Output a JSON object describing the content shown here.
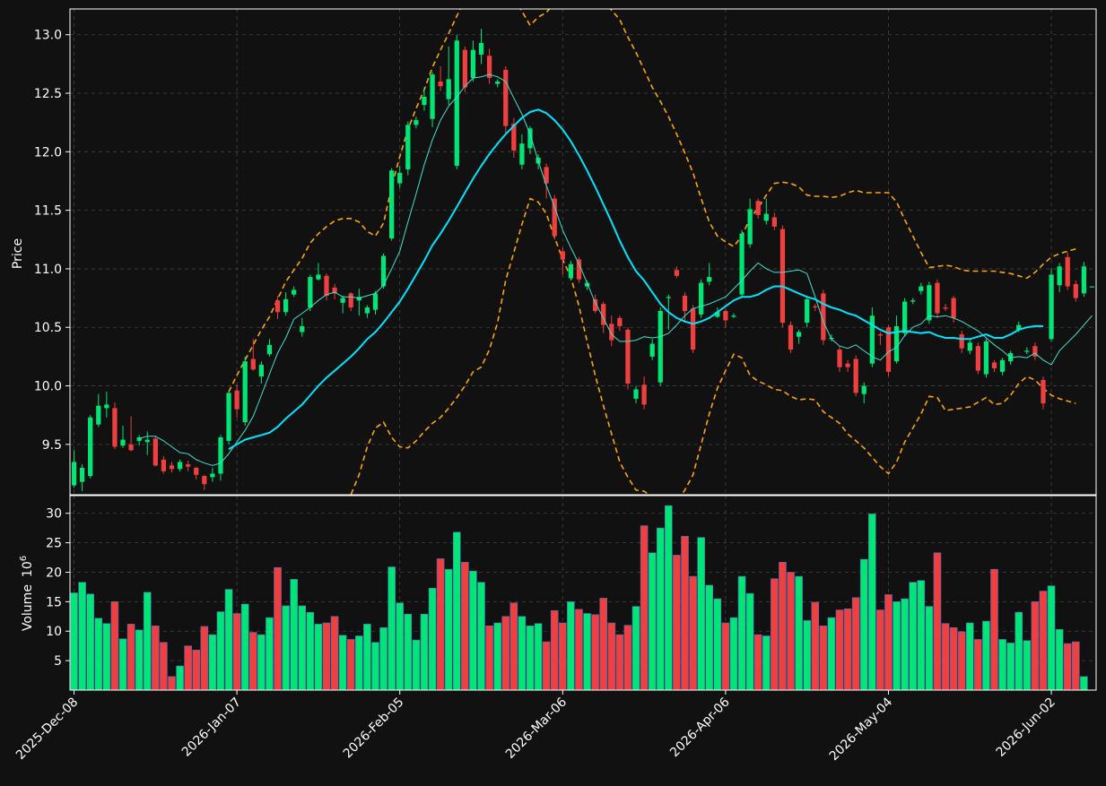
{
  "chart_data": {
    "type": "candlestick",
    "colors": {
      "background": "#111111",
      "up": "#00e676",
      "down": "#ef3f3f",
      "grid": "#444444",
      "ma_fast": "#40e0d0",
      "ma_slow": "#00e5ff",
      "bands": "#ffa500",
      "axes": "#ffffff",
      "volume_edge": "#4c6fbf"
    },
    "price_panel": {
      "ylabel": "Price",
      "ylim": [
        9.07,
        13.22
      ],
      "yticks": [
        9.5,
        10.0,
        10.5,
        11.0,
        11.5,
        12.0,
        12.5,
        13.0
      ],
      "ytick_labels": [
        "9.5",
        "10.0",
        "10.5",
        "11.0",
        "11.5",
        "12.0",
        "12.5",
        "13.0"
      ],
      "grid": true
    },
    "volume_panel": {
      "ylabel": "Volume",
      "yunit": "10",
      "yunit_exp": "6",
      "ylim": [
        0,
        33
      ],
      "yticks": [
        5,
        10,
        15,
        20,
        25,
        30
      ],
      "ytick_labels": [
        "5",
        "10",
        "15",
        "20",
        "25",
        "30"
      ],
      "grid": true
    },
    "x_axis": {
      "xlim": [
        -0.5,
        125.5
      ],
      "ticks": [
        0,
        20,
        40,
        60,
        80,
        100,
        120
      ],
      "labels": [
        "2025-Dec-08",
        "2026-Jan-07",
        "2026-Feb-05",
        "2026-Mar-06",
        "2026-Apr-06",
        "2026-May-04",
        "2026-Jun-02"
      ]
    },
    "candles": [
      [
        9.15,
        9.35,
        9.45,
        9.13
      ],
      [
        9.18,
        9.3,
        9.33,
        9.1
      ],
      [
        9.23,
        9.73,
        9.75,
        9.21
      ],
      [
        9.67,
        9.83,
        9.93,
        9.65
      ],
      [
        9.81,
        9.84,
        9.95,
        9.73
      ],
      [
        9.81,
        9.48,
        9.86,
        9.46
      ],
      [
        9.49,
        9.54,
        9.66,
        9.47
      ],
      [
        9.5,
        9.45,
        9.74,
        9.44
      ],
      [
        9.53,
        9.56,
        9.58,
        9.49
      ],
      [
        9.52,
        9.54,
        9.61,
        9.41
      ],
      [
        9.55,
        9.32,
        9.57,
        9.31
      ],
      [
        9.37,
        9.27,
        9.4,
        9.25
      ],
      [
        9.32,
        9.29,
        9.35,
        9.26
      ],
      [
        9.29,
        9.35,
        9.37,
        9.27
      ],
      [
        9.33,
        9.31,
        9.36,
        9.27
      ],
      [
        9.3,
        9.24,
        9.31,
        9.2
      ],
      [
        9.23,
        9.16,
        9.24,
        9.11
      ],
      [
        9.22,
        9.25,
        9.3,
        9.18
      ],
      [
        9.25,
        9.56,
        9.58,
        9.19
      ],
      [
        9.53,
        9.94,
        9.95,
        9.5
      ],
      [
        9.96,
        9.8,
        10.01,
        9.73
      ],
      [
        9.69,
        10.21,
        10.25,
        9.66
      ],
      [
        10.23,
        10.14,
        10.4,
        10.13
      ],
      [
        10.08,
        10.18,
        10.21,
        10.02
      ],
      [
        10.27,
        10.35,
        10.4,
        10.25
      ],
      [
        10.73,
        10.63,
        10.77,
        10.57
      ],
      [
        10.63,
        10.74,
        10.8,
        10.6
      ],
      [
        10.78,
        10.82,
        10.85,
        10.76
      ],
      [
        10.46,
        10.51,
        10.58,
        10.42
      ],
      [
        10.67,
        10.93,
        10.95,
        10.64
      ],
      [
        10.91,
        10.95,
        11.05,
        10.9
      ],
      [
        10.94,
        10.77,
        10.96,
        10.73
      ],
      [
        10.84,
        10.79,
        10.87,
        10.74
      ],
      [
        10.71,
        10.75,
        10.77,
        10.62
      ],
      [
        10.79,
        10.67,
        10.8,
        10.64
      ],
      [
        10.73,
        10.76,
        10.83,
        10.6
      ],
      [
        10.62,
        10.67,
        10.69,
        10.58
      ],
      [
        10.65,
        10.79,
        10.81,
        10.61
      ],
      [
        10.85,
        11.11,
        11.13,
        10.83
      ],
      [
        11.26,
        11.84,
        11.86,
        11.24
      ],
      [
        11.73,
        11.82,
        11.88,
        11.69
      ],
      [
        11.85,
        12.23,
        12.26,
        11.8
      ],
      [
        12.23,
        12.27,
        12.3,
        12.2
      ],
      [
        12.4,
        12.47,
        12.55,
        12.35
      ],
      [
        12.28,
        12.66,
        12.68,
        12.21
      ],
      [
        12.6,
        12.56,
        12.73,
        12.52
      ],
      [
        12.45,
        12.62,
        12.9,
        12.4
      ],
      [
        11.88,
        12.95,
        13.0,
        11.85
      ],
      [
        12.87,
        12.55,
        12.9,
        12.51
      ],
      [
        12.63,
        12.87,
        12.95,
        12.6
      ],
      [
        12.83,
        12.93,
        13.05,
        12.75
      ],
      [
        12.82,
        12.63,
        12.88,
        12.58
      ],
      [
        12.58,
        12.6,
        12.62,
        12.55
      ],
      [
        12.7,
        12.22,
        12.73,
        12.15
      ],
      [
        12.24,
        12.01,
        12.29,
        11.95
      ],
      [
        11.89,
        12.07,
        12.15,
        11.85
      ],
      [
        12.03,
        12.2,
        12.22,
        11.98
      ],
      [
        11.9,
        11.95,
        11.98,
        11.85
      ],
      [
        11.87,
        11.73,
        11.9,
        11.6
      ],
      [
        11.6,
        11.28,
        11.63,
        11.25
      ],
      [
        11.15,
        11.08,
        11.18,
        10.95
      ],
      [
        10.92,
        11.04,
        11.07,
        10.9
      ],
      [
        11.08,
        10.91,
        11.1,
        10.88
      ],
      [
        10.85,
        10.88,
        10.9,
        10.82
      ],
      [
        10.74,
        10.64,
        10.78,
        10.62
      ],
      [
        10.7,
        10.52,
        10.72,
        10.45
      ],
      [
        10.53,
        10.39,
        10.6,
        10.34
      ],
      [
        10.58,
        10.51,
        10.6,
        10.47
      ],
      [
        10.48,
        10.02,
        10.5,
        9.97
      ],
      [
        9.89,
        9.97,
        10.0,
        9.85
      ],
      [
        10.01,
        9.84,
        10.08,
        9.8
      ],
      [
        10.25,
        10.36,
        10.4,
        10.22
      ],
      [
        10.03,
        10.64,
        10.67,
        10.0
      ],
      [
        10.76,
        10.76,
        10.78,
        10.48
      ],
      [
        10.99,
        10.94,
        11.02,
        10.92
      ],
      [
        10.77,
        10.64,
        10.8,
        10.54
      ],
      [
        10.66,
        10.31,
        10.69,
        10.28
      ],
      [
        10.61,
        10.88,
        10.91,
        10.58
      ],
      [
        10.89,
        10.93,
        11.05,
        10.86
      ],
      [
        10.59,
        10.63,
        10.67,
        10.58
      ],
      [
        10.64,
        10.56,
        10.66,
        10.5
      ],
      [
        10.6,
        10.6,
        10.62,
        10.58
      ],
      [
        10.78,
        11.3,
        11.33,
        10.75
      ],
      [
        11.21,
        11.51,
        11.6,
        11.18
      ],
      [
        11.58,
        11.46,
        11.6,
        11.43
      ],
      [
        11.41,
        11.47,
        11.6,
        11.38
      ],
      [
        11.44,
        11.36,
        11.48,
        11.33
      ],
      [
        11.34,
        10.54,
        11.37,
        10.5
      ],
      [
        10.52,
        10.31,
        10.55,
        10.28
      ],
      [
        10.42,
        10.46,
        10.48,
        10.36
      ],
      [
        10.54,
        10.74,
        10.77,
        10.5
      ],
      [
        10.68,
        10.67,
        10.7,
        10.64
      ],
      [
        10.79,
        10.39,
        10.82,
        10.35
      ],
      [
        10.41,
        10.41,
        10.44,
        10.38
      ],
      [
        10.31,
        10.16,
        10.34,
        10.12
      ],
      [
        10.19,
        10.16,
        10.22,
        10.12
      ],
      [
        10.23,
        9.94,
        10.26,
        9.91
      ],
      [
        9.93,
        10.0,
        10.03,
        9.85
      ],
      [
        10.19,
        10.6,
        10.67,
        10.16
      ],
      [
        10.44,
        10.43,
        10.46,
        10.35
      ],
      [
        10.5,
        10.12,
        10.52,
        10.08
      ],
      [
        10.21,
        10.51,
        10.6,
        10.19
      ],
      [
        10.45,
        10.72,
        10.75,
        10.42
      ],
      [
        10.72,
        10.73,
        10.75,
        10.7
      ],
      [
        10.81,
        10.85,
        10.88,
        10.78
      ],
      [
        10.56,
        10.86,
        10.89,
        10.53
      ],
      [
        10.88,
        10.62,
        10.91,
        10.58
      ],
      [
        10.67,
        10.66,
        10.7,
        10.64
      ],
      [
        10.75,
        10.58,
        10.77,
        10.54
      ],
      [
        10.44,
        10.32,
        10.47,
        10.28
      ],
      [
        10.3,
        10.37,
        10.4,
        10.27
      ],
      [
        10.34,
        10.13,
        10.37,
        10.1
      ],
      [
        10.1,
        10.38,
        10.4,
        10.07
      ],
      [
        10.2,
        10.15,
        10.22,
        10.12
      ],
      [
        10.12,
        10.22,
        10.24,
        10.09
      ],
      [
        10.21,
        10.28,
        10.3,
        10.18
      ],
      [
        10.48,
        10.52,
        10.55,
        10.46
      ],
      [
        10.3,
        10.3,
        10.33,
        10.27
      ],
      [
        10.34,
        10.25,
        10.37,
        10.22
      ],
      [
        10.05,
        9.85,
        10.08,
        9.8
      ],
      [
        10.4,
        10.95,
        11.0,
        10.38
      ],
      [
        10.86,
        11.02,
        11.05,
        10.8
      ],
      [
        11.1,
        10.85,
        11.14,
        10.82
      ],
      [
        10.87,
        10.75,
        10.9,
        10.72
      ],
      [
        10.79,
        11.02,
        11.06,
        10.76
      ],
      [
        10.85,
        10.85,
        10.85,
        10.85
      ]
    ],
    "volume_millions": [
      16.5,
      18.3,
      16.3,
      12.2,
      11.3,
      15.0,
      8.7,
      11.2,
      10.2,
      16.6,
      10.9,
      8.1,
      2.3,
      4.1,
      7.5,
      6.8,
      10.8,
      9.4,
      13.3,
      17.1,
      13.0,
      14.6,
      9.8,
      9.4,
      12.3,
      20.8,
      14.3,
      18.8,
      14.3,
      13.2,
      11.2,
      11.4,
      12.5,
      9.3,
      8.6,
      9.2,
      11.2,
      8.1,
      10.6,
      20.9,
      14.8,
      12.9,
      8.5,
      12.9,
      17.3,
      22.3,
      20.5,
      26.8,
      21.7,
      20.2,
      18.3,
      10.9,
      11.4,
      12.5,
      14.8,
      12.5,
      10.9,
      11.3,
      8.2,
      13.5,
      11.4,
      15.0,
      13.7,
      13.0,
      12.8,
      15.6,
      11.4,
      9.4,
      11.0,
      14.2,
      27.9,
      23.3,
      27.5,
      31.3,
      22.9,
      26.1,
      19.3,
      25.9,
      17.8,
      15.5,
      11.4,
      12.3,
      19.3,
      16.4,
      9.4,
      9.2,
      18.9,
      21.7,
      20.0,
      19.3,
      11.8,
      14.9,
      10.9,
      12.3,
      13.6,
      13.8,
      15.7,
      22.2,
      29.9,
      13.6,
      16.2,
      15.0,
      15.5,
      18.3,
      18.6,
      14.2,
      23.3,
      11.3,
      10.6,
      9.9,
      11.4,
      8.6,
      11.7,
      20.5,
      8.6,
      8.0,
      13.2,
      8.4,
      15.0,
      16.8,
      17.7,
      10.3,
      7.9,
      8.2,
      2.3
    ],
    "ma_fast": [
      null,
      null,
      null,
      null,
      null,
      null,
      null,
      null,
      9.55,
      9.57,
      9.57,
      9.53,
      9.48,
      9.43,
      9.42,
      9.37,
      9.34,
      9.32,
      9.34,
      9.42,
      9.52,
      9.62,
      9.74,
      9.92,
      10.1,
      10.28,
      10.41,
      10.57,
      10.62,
      10.67,
      10.73,
      10.78,
      10.8,
      10.76,
      10.76,
      10.75,
      10.77,
      10.79,
      10.86,
      11.0,
      11.15,
      11.4,
      11.64,
      11.89,
      12.1,
      12.27,
      12.39,
      12.47,
      12.56,
      12.63,
      12.64,
      12.66,
      12.64,
      12.6,
      12.46,
      12.32,
      12.15,
      11.92,
      11.71,
      11.53,
      11.33,
      11.18,
      11.04,
      10.88,
      10.71,
      10.58,
      10.44,
      10.38,
      10.38,
      10.39,
      10.42,
      10.41,
      10.42,
      10.45,
      10.52,
      10.6,
      10.66,
      10.68,
      10.7,
      10.73,
      10.76,
      10.83,
      10.9,
      10.98,
      11.05,
      11.0,
      10.97,
      10.97,
      10.98,
      10.99,
      10.96,
      10.76,
      10.55,
      10.4,
      10.34,
      10.32,
      10.35,
      10.3,
      10.25,
      10.22,
      10.29,
      10.33,
      10.43,
      10.5,
      10.53,
      10.6,
      10.59,
      10.6,
      10.58,
      10.55,
      10.51,
      10.47,
      10.41,
      10.35,
      10.3,
      10.24,
      10.25,
      10.24,
      10.28,
      10.22,
      10.18,
      10.3,
      10.37,
      10.44,
      10.52,
      10.6
    ],
    "ma_slow": [
      null,
      null,
      null,
      null,
      null,
      null,
      null,
      null,
      null,
      null,
      null,
      null,
      null,
      null,
      null,
      null,
      null,
      null,
      null,
      9.46,
      9.5,
      9.54,
      9.56,
      9.58,
      9.6,
      9.65,
      9.72,
      9.78,
      9.84,
      9.92,
      10.0,
      10.07,
      10.13,
      10.19,
      10.25,
      10.32,
      10.4,
      10.46,
      10.54,
      10.63,
      10.72,
      10.83,
      10.95,
      11.07,
      11.2,
      11.3,
      11.41,
      11.53,
      11.65,
      11.77,
      11.88,
      11.98,
      12.07,
      12.15,
      12.22,
      12.29,
      12.34,
      12.36,
      12.33,
      12.27,
      12.19,
      12.09,
      11.97,
      11.84,
      11.7,
      11.55,
      11.4,
      11.24,
      11.1,
      10.98,
      10.9,
      10.8,
      10.7,
      10.63,
      10.58,
      10.55,
      10.53,
      10.55,
      10.58,
      10.63,
      10.68,
      10.73,
      10.76,
      10.76,
      10.78,
      10.82,
      10.85,
      10.85,
      10.82,
      10.79,
      10.76,
      10.74,
      10.7,
      10.67,
      10.65,
      10.62,
      10.6,
      10.56,
      10.52,
      10.48,
      10.45,
      10.46,
      10.47,
      10.46,
      10.45,
      10.46,
      10.43,
      10.41,
      10.41,
      10.4,
      10.4,
      10.42,
      10.44,
      10.41,
      10.41,
      10.44,
      10.48,
      10.5,
      10.51,
      10.51
    ],
    "band_upper": [
      null,
      null,
      null,
      null,
      null,
      null,
      null,
      null,
      null,
      null,
      null,
      null,
      null,
      null,
      null,
      null,
      null,
      null,
      null,
      9.95,
      10.09,
      10.22,
      10.35,
      10.48,
      10.59,
      10.74,
      10.89,
      10.99,
      11.09,
      11.22,
      11.3,
      11.36,
      11.41,
      11.43,
      11.43,
      11.4,
      11.32,
      11.28,
      11.39,
      11.7,
      11.96,
      12.19,
      12.37,
      12.53,
      12.72,
      12.87,
      13.01,
      13.16,
      13.3,
      13.42,
      13.6,
      13.65,
      13.6,
      13.4,
      13.3,
      13.2,
      13.08,
      13.15,
      13.19,
      13.27,
      13.3,
      13.25,
      13.26,
      13.3,
      13.31,
      13.27,
      13.21,
      13.13,
      12.98,
      12.85,
      12.7,
      12.55,
      12.43,
      12.3,
      12.15,
      11.99,
      11.82,
      11.6,
      11.4,
      11.28,
      11.23,
      11.19,
      11.28,
      11.43,
      11.52,
      11.63,
      11.73,
      11.74,
      11.73,
      11.7,
      11.63,
      11.62,
      11.62,
      11.61,
      11.62,
      11.65,
      11.67,
      11.65,
      11.65,
      11.65,
      11.65,
      11.57,
      11.42,
      11.28,
      11.14,
      11.01,
      11.02,
      11.03,
      11.02,
      10.99,
      10.98,
      10.98,
      10.98,
      10.98,
      10.97,
      10.96,
      10.94,
      10.92,
      10.97,
      11.04,
      11.1,
      11.13,
      11.15,
      11.17
    ],
    "band_lower": [
      null,
      null,
      null,
      null,
      null,
      null,
      null,
      null,
      null,
      null,
      null,
      null,
      null,
      null,
      null,
      null,
      null,
      null,
      null,
      8.97,
      8.91,
      8.86,
      8.77,
      8.68,
      8.61,
      8.56,
      8.55,
      8.57,
      8.59,
      8.62,
      8.7,
      8.78,
      8.85,
      8.95,
      9.07,
      9.24,
      9.48,
      9.64,
      9.69,
      9.56,
      9.48,
      9.47,
      9.53,
      9.61,
      9.68,
      9.73,
      9.81,
      9.9,
      10.0,
      10.12,
      10.16,
      10.31,
      10.54,
      10.9,
      11.14,
      11.38,
      11.6,
      11.57,
      11.47,
      11.27,
      11.08,
      10.93,
      10.68,
      10.38,
      10.09,
      9.83,
      9.59,
      9.35,
      9.22,
      9.11,
      9.1,
      9.05,
      8.97,
      8.96,
      9.01,
      9.11,
      9.24,
      9.5,
      9.76,
      9.98,
      10.13,
      10.27,
      10.24,
      10.09,
      10.04,
      10.01,
      9.97,
      9.96,
      9.91,
      9.88,
      9.89,
      9.88,
      9.78,
      9.73,
      9.68,
      9.59,
      9.53,
      9.47,
      9.39,
      9.31,
      9.25,
      9.35,
      9.52,
      9.64,
      9.76,
      9.91,
      9.9,
      9.79,
      9.8,
      9.81,
      9.82,
      9.86,
      9.9,
      9.84,
      9.85,
      9.92,
      10.02,
      10.08,
      10.05,
      9.98,
      9.92,
      9.89,
      9.87,
      9.85
    ]
  }
}
